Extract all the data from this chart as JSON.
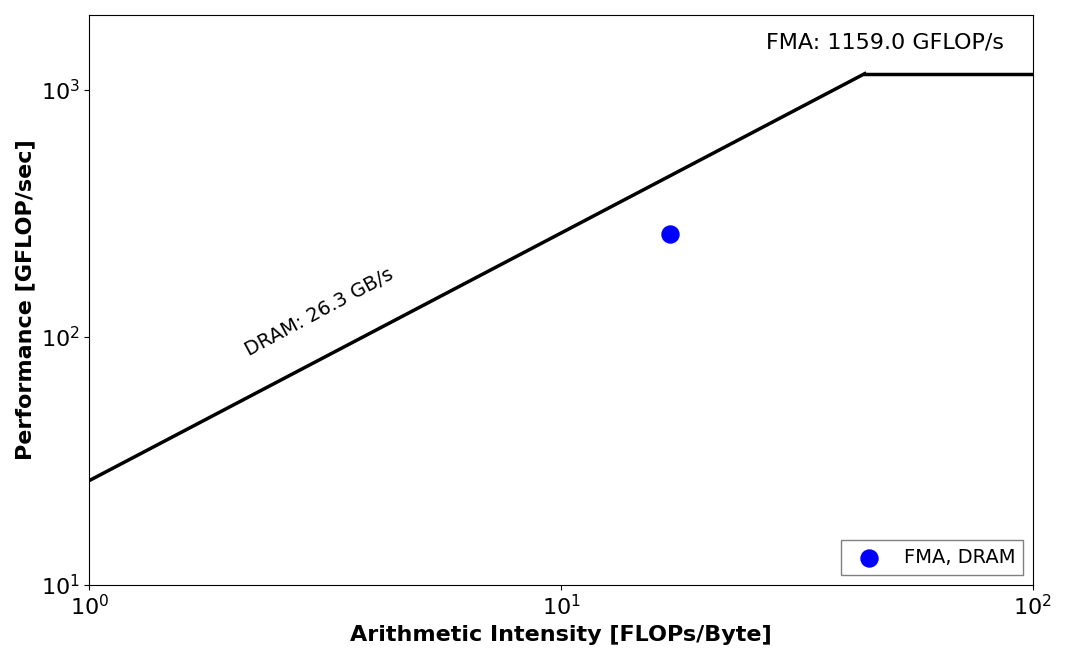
{
  "title": "",
  "xlabel": "Arithmetic Intensity [FLOPs/Byte]",
  "ylabel": "Performance [GFLOP/sec]",
  "xlim": [
    1.0,
    100.0
  ],
  "ylim": [
    10.0,
    2000.0
  ],
  "peak_gflops": 1159.0,
  "peak_bandwidth_gbs": 26.3,
  "fma_label": "FMA: 1159.0 GFLOP/s",
  "dram_label": "DRAM: 26.3 GB/s",
  "point_x": 17.0,
  "point_y": 260.0,
  "point_color": "#0000ff",
  "point_size": 150,
  "point_label": "FMA, DRAM",
  "line_color": "#000000",
  "line_width": 2.5,
  "background_color": "#ffffff",
  "figsize": [
    10.67,
    6.6
  ],
  "dpi": 100,
  "fma_label_fontsize": 16,
  "dram_label_fontsize": 14,
  "axis_label_fontsize": 16,
  "tick_fontsize": 16,
  "legend_fontsize": 14
}
